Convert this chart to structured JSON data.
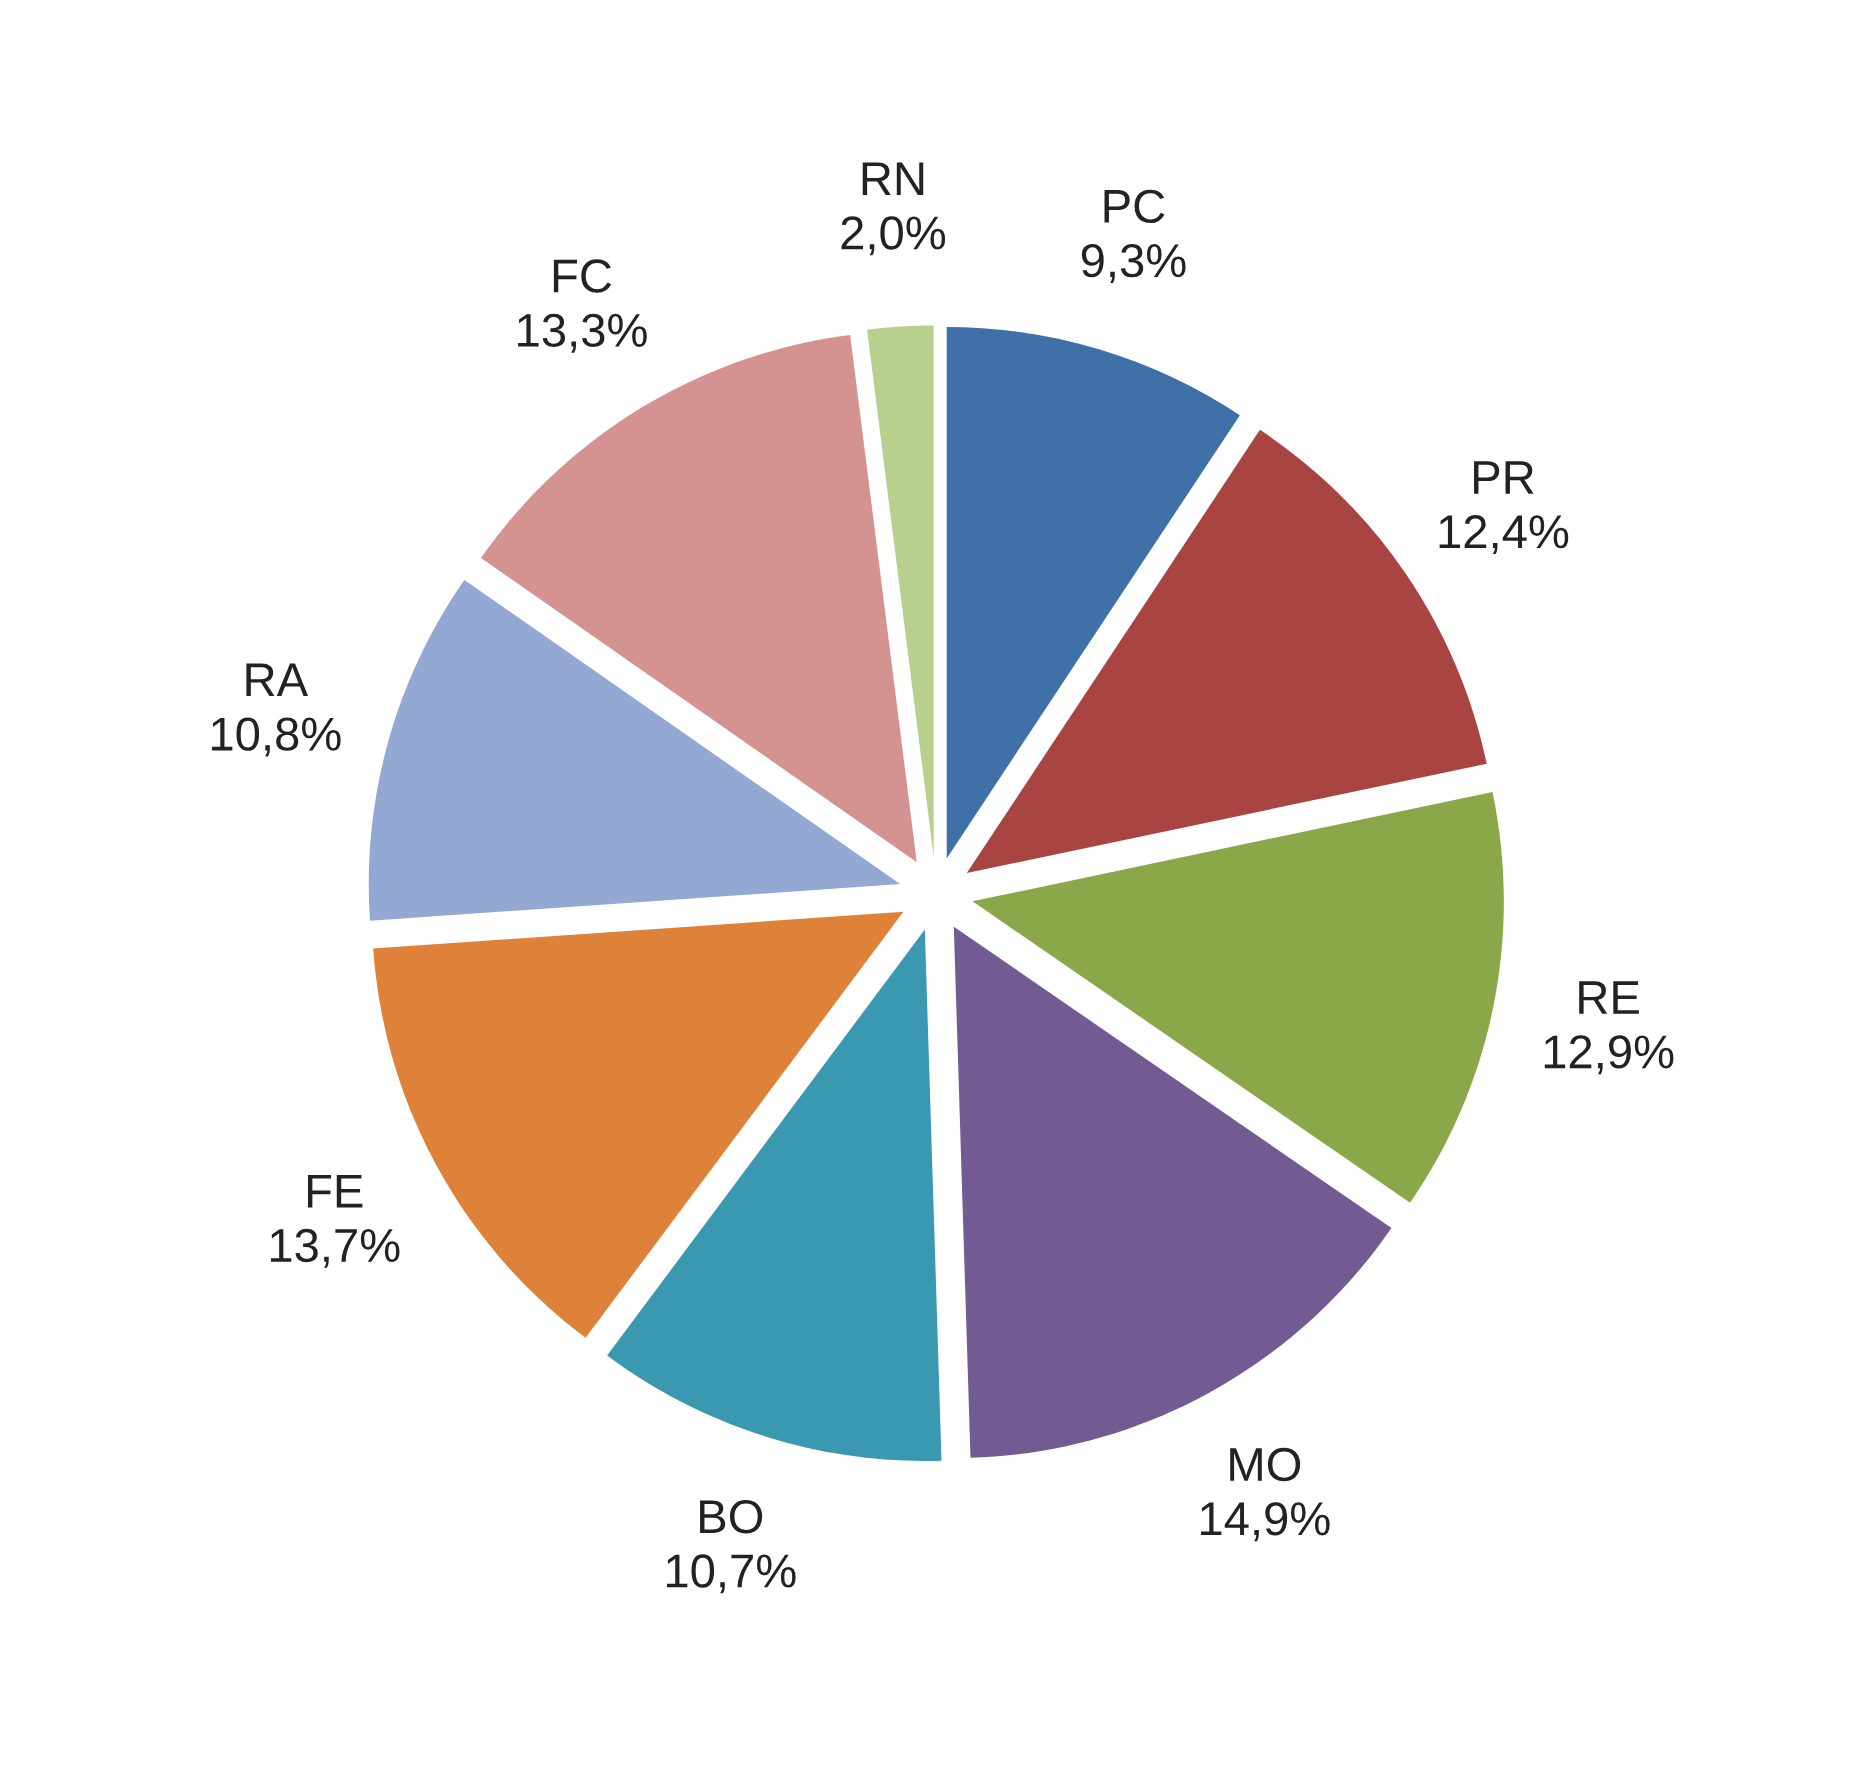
{
  "chart_data": {
    "type": "pie",
    "categories": [
      "PC",
      "PR",
      "RE",
      "MO",
      "BO",
      "FE",
      "RA",
      "FC",
      "RN"
    ],
    "values": [
      9.3,
      12.4,
      12.9,
      14.9,
      10.7,
      13.7,
      10.8,
      13.3,
      2.0
    ],
    "value_labels": [
      "9,3%",
      "12,4%",
      "12,9%",
      "14,9%",
      "10,7%",
      "13,7%",
      "10,8%",
      "13,3%",
      "2,0%"
    ],
    "colors": [
      "#4070a8",
      "#a84442",
      "#8aa84a",
      "#725a92",
      "#3a98b0",
      "#de823a",
      "#93a9d4",
      "#d49391",
      "#b8d08e"
    ],
    "legend": false
  }
}
